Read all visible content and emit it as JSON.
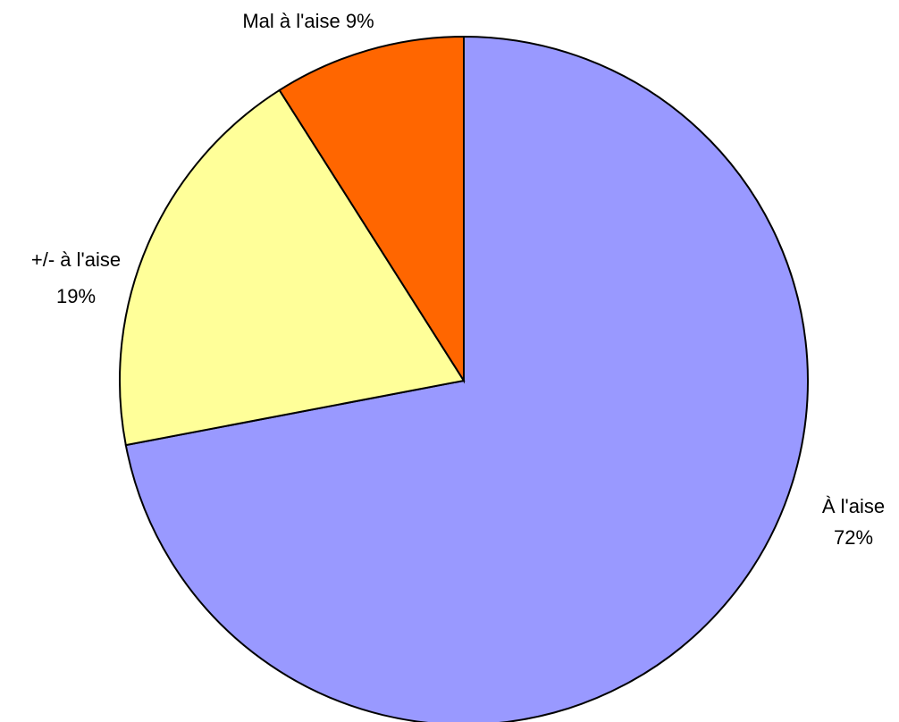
{
  "chart_data": {
    "type": "pie",
    "categories": [
      "À l'aise",
      "+/- à l'aise",
      "Mal à l'aise"
    ],
    "values": [
      72,
      19,
      9
    ],
    "value_labels": [
      "72%",
      "19%",
      "9%"
    ],
    "colors": [
      "#9999ff",
      "#ffff99",
      "#ff6600"
    ]
  }
}
